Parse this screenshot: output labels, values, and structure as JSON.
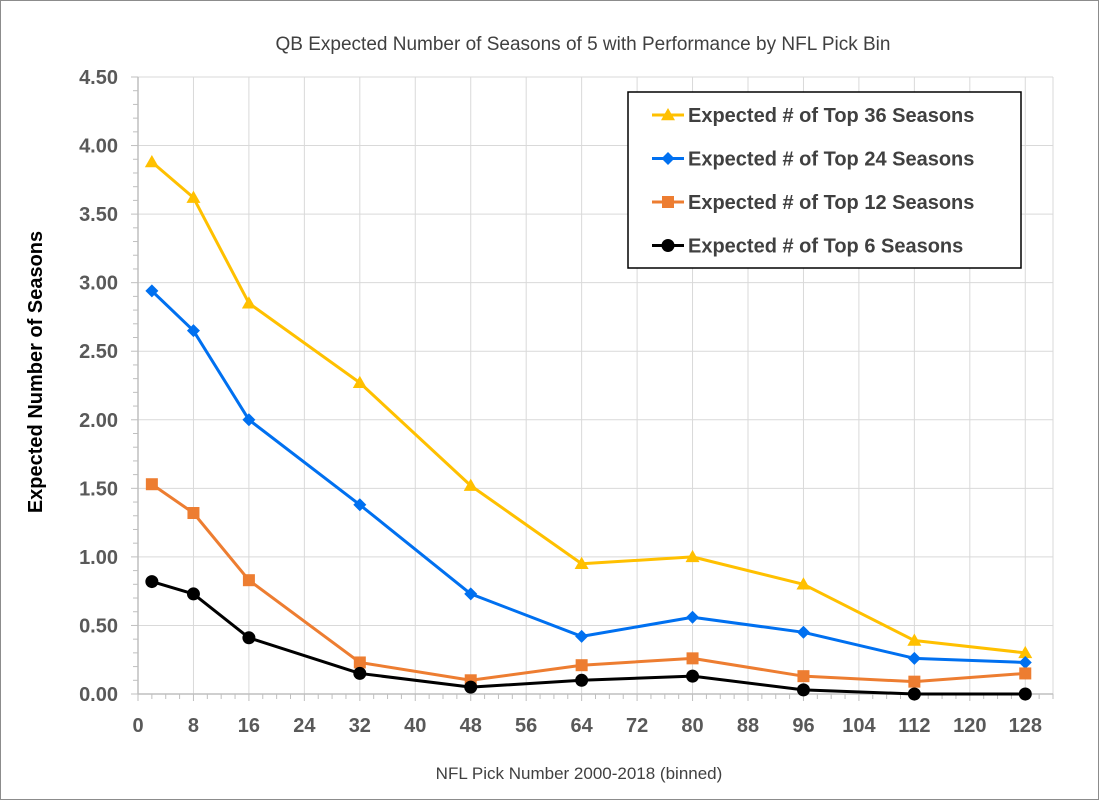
{
  "chart_data": {
    "type": "line",
    "title": "QB Expected Number of Seasons of 5 with Performance by NFL Pick Bin",
    "xlabel": "NFL Pick Number 2000-2018 (binned)",
    "ylabel": "Expected Number of Seasons",
    "xlim": [
      0,
      132
    ],
    "ylim": [
      0,
      4.5
    ],
    "x_ticks": [
      "0",
      "8",
      "16",
      "24",
      "32",
      "40",
      "48",
      "56",
      "64",
      "72",
      "80",
      "88",
      "96",
      "104",
      "112",
      "120",
      "128"
    ],
    "y_ticks": [
      "0.00",
      "0.50",
      "1.00",
      "1.50",
      "2.00",
      "2.50",
      "3.00",
      "3.50",
      "4.00",
      "4.50"
    ],
    "x_tick_values": [
      0,
      8,
      16,
      24,
      32,
      40,
      48,
      56,
      64,
      72,
      80,
      88,
      96,
      104,
      112,
      120,
      128
    ],
    "y_tick_values": [
      0,
      0.5,
      1.0,
      1.5,
      2.0,
      2.5,
      3.0,
      3.5,
      4.0,
      4.5
    ],
    "x_minor_step": 2,
    "y_minor_step": 0.1,
    "grid": true,
    "legend_position": "top-right",
    "x": [
      2,
      8,
      16,
      32,
      48,
      64,
      80,
      96,
      112,
      128
    ],
    "series": [
      {
        "name": "Expected # of Top 36 Seasons",
        "color": "#FFC000",
        "marker": "triangle",
        "values": [
          3.88,
          3.62,
          2.85,
          2.27,
          1.52,
          0.95,
          1.0,
          0.8,
          0.39,
          0.3
        ]
      },
      {
        "name": "Expected # of Top 24 Seasons",
        "color": "#0070F0",
        "marker": "diamond",
        "values": [
          2.94,
          2.65,
          2.0,
          1.38,
          0.73,
          0.42,
          0.56,
          0.45,
          0.26,
          0.23
        ]
      },
      {
        "name": "Expected # of Top 12 Seasons",
        "color": "#ED7D31",
        "marker": "square",
        "values": [
          1.53,
          1.32,
          0.83,
          0.23,
          0.1,
          0.21,
          0.26,
          0.13,
          0.09,
          0.15
        ]
      },
      {
        "name": "Expected # of Top 6 Seasons",
        "color": "#000000",
        "marker": "circle",
        "values": [
          0.82,
          0.73,
          0.41,
          0.15,
          0.05,
          0.1,
          0.13,
          0.03,
          0.0,
          0.0
        ]
      }
    ]
  }
}
